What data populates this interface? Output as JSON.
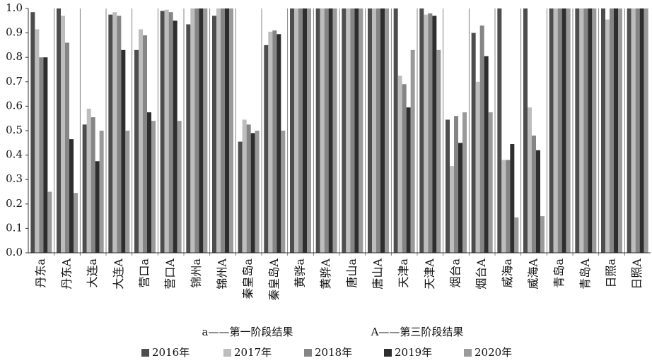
{
  "chart_data": {
    "type": "bar",
    "categories": [
      "丹东a",
      "丹东A",
      "大连a",
      "大连A",
      "营口a",
      "营口A",
      "锦州a",
      "锦州A",
      "秦皇岛a",
      "秦皇岛A",
      "黄骅a",
      "黄骅A",
      "唐山a",
      "唐山A",
      "天津a",
      "天津A",
      "烟台a",
      "烟台A",
      "威海a",
      "威海A",
      "青岛a",
      "青岛A",
      "日照a",
      "日照A"
    ],
    "series": [
      {
        "name": "2016年",
        "color": "#4d4d4d",
        "values": [
          0.985,
          1.0,
          0.525,
          0.975,
          0.83,
          0.99,
          0.935,
          0.97,
          0.455,
          0.85,
          1.0,
          1.0,
          1.0,
          1.0,
          1.0,
          1.0,
          0.545,
          0.9,
          1.0,
          1.0,
          1.0,
          1.0,
          1.0,
          1.0
        ]
      },
      {
        "name": "2017年",
        "color": "#bdbdbd",
        "values": [
          0.915,
          0.97,
          0.59,
          0.985,
          0.915,
          0.995,
          1.0,
          1.0,
          0.545,
          0.905,
          1.0,
          1.0,
          1.0,
          1.0,
          0.725,
          0.975,
          0.355,
          0.7,
          0.38,
          0.595,
          1.0,
          1.0,
          0.955,
          1.0
        ]
      },
      {
        "name": "2018年",
        "color": "#858585",
        "values": [
          0.8,
          0.86,
          0.555,
          0.97,
          0.89,
          0.985,
          1.0,
          1.0,
          0.525,
          0.91,
          1.0,
          1.0,
          1.0,
          1.0,
          0.69,
          0.98,
          0.56,
          0.93,
          0.38,
          0.48,
          1.0,
          1.0,
          1.0,
          1.0
        ]
      },
      {
        "name": "2019年",
        "color": "#2e2e2e",
        "values": [
          0.8,
          0.465,
          0.375,
          0.83,
          0.575,
          0.95,
          1.0,
          1.0,
          0.49,
          0.895,
          1.0,
          1.0,
          1.0,
          1.0,
          0.595,
          0.97,
          0.45,
          0.805,
          0.445,
          0.42,
          1.0,
          1.0,
          1.0,
          1.0
        ]
      },
      {
        "name": "2020年",
        "color": "#9a9a9a",
        "values": [
          0.25,
          0.245,
          0.5,
          0.5,
          0.54,
          0.54,
          1.0,
          1.0,
          0.5,
          0.5,
          1.0,
          1.0,
          1.0,
          1.0,
          0.83,
          0.83,
          0.575,
          0.575,
          0.145,
          0.15,
          1.0,
          1.0,
          1.0,
          1.0
        ]
      }
    ],
    "ylim": [
      0,
      1
    ],
    "yticks": [
      {
        "value": 0,
        "label": "0.0"
      },
      0.1,
      0.2,
      0.3,
      0.4,
      0.5,
      0.6,
      0.7,
      0.8,
      0.9,
      {
        "value": 1,
        "label": "1.0"
      }
    ],
    "annotations": [
      "a——第一阶段结果",
      "A——第三阶段结果"
    ]
  }
}
